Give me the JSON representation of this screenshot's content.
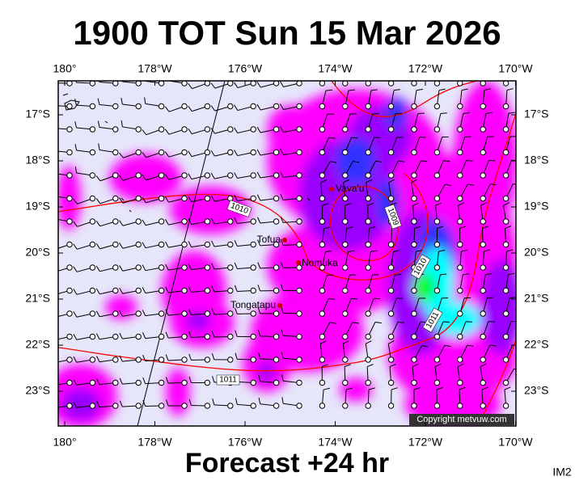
{
  "header": {
    "title": "1900 TOT Sun 15 Mar 2026"
  },
  "map": {
    "lon_labels": [
      "180°",
      "178°W",
      "176°W",
      "174°W",
      "172°W",
      "170°W"
    ],
    "lat_labels": [
      "17°S",
      "18°S",
      "19°S",
      "20°S",
      "21°S",
      "22°S",
      "23°S"
    ],
    "places": [
      "Vava'u",
      "Tofua",
      "Nomuka",
      "Tongatapu"
    ],
    "isobar_labels": [
      "1010",
      "1009",
      "1010",
      "1011",
      "1011"
    ],
    "copyright": "Copyright metvuw.com"
  },
  "footer": {
    "forecast": "Forecast +24 hr",
    "code": "IM2"
  }
}
